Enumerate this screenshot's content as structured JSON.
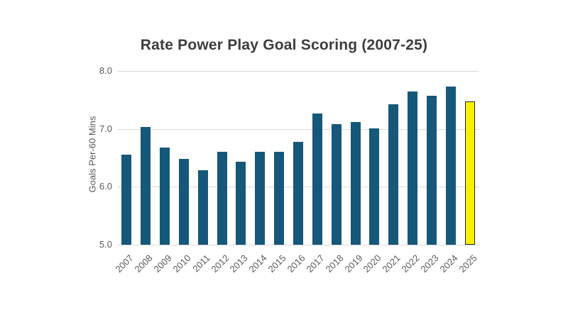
{
  "chart_data": {
    "type": "bar",
    "title": "Rate Power Play Goal Scoring (2007-25)",
    "xlabel": "",
    "ylabel": "Goals Per-60 Mins",
    "categories": [
      "2007",
      "2008",
      "2009",
      "2010",
      "2011",
      "2012",
      "2013",
      "2014",
      "2015",
      "2016",
      "2017",
      "2018",
      "2019",
      "2020",
      "2021",
      "2022",
      "2023",
      "2024",
      "2025"
    ],
    "values": [
      6.56,
      7.03,
      6.68,
      6.48,
      6.29,
      6.61,
      6.43,
      6.61,
      6.61,
      6.78,
      7.26,
      7.08,
      7.12,
      7.01,
      7.42,
      7.64,
      7.57,
      7.73,
      7.47
    ],
    "ylim": [
      5.0,
      8.0
    ],
    "yticks": [
      5.0,
      6.0,
      7.0,
      8.0
    ],
    "ytick_labels": [
      "5.0",
      "6.0",
      "7.0",
      "8.0"
    ],
    "grid": true,
    "legend": "none",
    "bar_color": "#16587a",
    "highlight_index": 18,
    "highlight_color": "#f6f000",
    "highlight_border": "#262626",
    "gridline_color": "#d9d9d9"
  }
}
